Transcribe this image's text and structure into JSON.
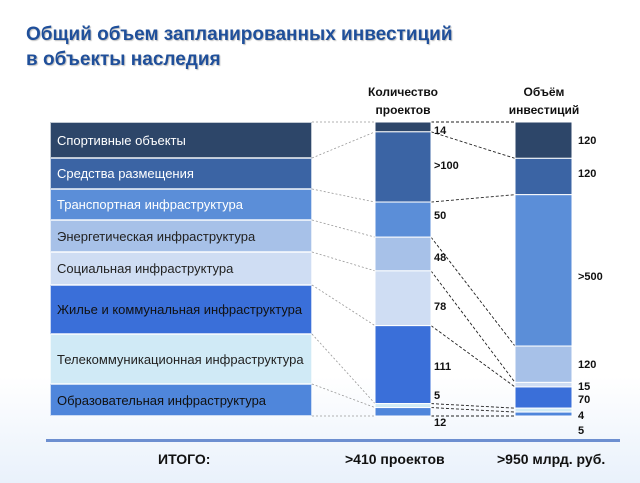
{
  "title": {
    "line1": "Общий объем запланированных инвестиций",
    "line2": "в объекты наследия"
  },
  "columns": {
    "projects": "Количество проектов",
    "investment": "Объём инвестиций"
  },
  "totals": {
    "label": "ИТОГО:",
    "projects": ">410 проектов",
    "investment": ">950 млрд. руб."
  },
  "chart_data": {
    "type": "bar",
    "stacked": true,
    "orientation": "vertical",
    "categories": [
      "Спортивные объекты",
      "Средства размещения",
      "Транспортная инфраструктура",
      "Энергетическая инфраструктура",
      "Социальная инфраструктура",
      "Жилье и коммунальная инфраструктура",
      "Телекоммуникационная инфраструктура",
      "Образовательная инфраструктура"
    ],
    "colors": [
      "#2d4669",
      "#3b64a4",
      "#5b8ed8",
      "#a7c1e8",
      "#cfddf3",
      "#3a6fd9",
      "#d0eaf6",
      "#4f86db"
    ],
    "text_colors": [
      "#ffffff",
      "#ffffff",
      "#ffffff",
      "#222222",
      "#222222",
      "#111111",
      "#222222",
      "#111111"
    ],
    "series": [
      {
        "name": "Количество проектов",
        "values": [
          14,
          100,
          50,
          48,
          78,
          111,
          5,
          12
        ],
        "labels": [
          "14",
          ">100",
          "50",
          "48",
          "78",
          "111",
          "5",
          "12"
        ]
      },
      {
        "name": "Объём инвестиций",
        "values": [
          120,
          120,
          500,
          120,
          15,
          70,
          4,
          5
        ],
        "labels": [
          "120",
          "120",
          ">500",
          "120",
          "15",
          "70",
          "4",
          "5"
        ]
      }
    ]
  }
}
